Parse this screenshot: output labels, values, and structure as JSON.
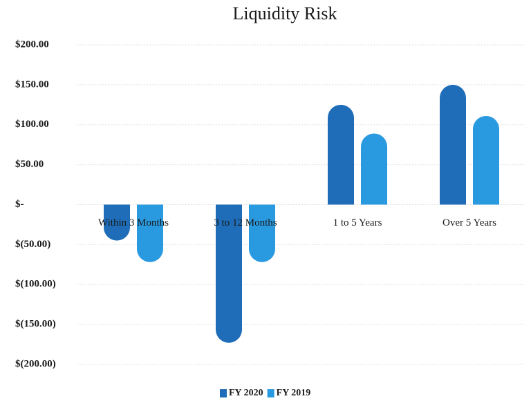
{
  "chart_data": {
    "type": "bar",
    "title": "Liquidity Risk",
    "categories": [
      "Within 3 Months",
      "3 to 12 Months",
      "1 to 5 Years",
      "Over 5 Years"
    ],
    "series": [
      {
        "name": "FY 2020",
        "color": "#1f6db8",
        "values": [
          -45,
          -173,
          125,
          150
        ]
      },
      {
        "name": "FY 2019",
        "color": "#2a9ae0",
        "values": [
          -72,
          -72,
          89,
          111
        ]
      }
    ],
    "ylim": [
      -200,
      200
    ],
    "yticks": [
      {
        "value": 200,
        "label": "$200.00"
      },
      {
        "value": 150,
        "label": "$150.00"
      },
      {
        "value": 100,
        "label": "$100.00"
      },
      {
        "value": 50,
        "label": "$50.00"
      },
      {
        "value": 0,
        "label": "$-"
      },
      {
        "value": -50,
        "label": "$(50.00)"
      },
      {
        "value": -100,
        "label": "$(100.00)"
      },
      {
        "value": -150,
        "label": "$(150.00)"
      },
      {
        "value": -200,
        "label": "$(200.00)"
      }
    ],
    "grid": true,
    "legend": "bottom"
  }
}
